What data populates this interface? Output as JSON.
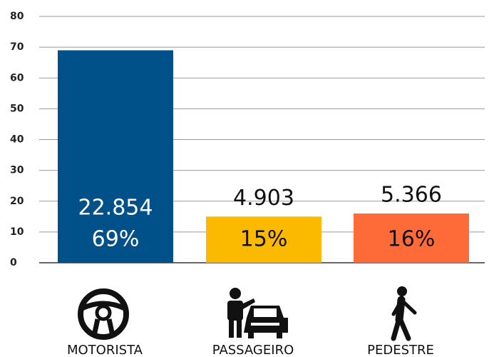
{
  "chart_data": {
    "type": "bar",
    "categories": [
      "MOTORISTA",
      "PASSAGEIRO",
      "PEDESTRE"
    ],
    "values": [
      69,
      15,
      16
    ],
    "value_labels": [
      "69%",
      "15%",
      "16%"
    ],
    "count_labels": [
      "22.854",
      "4.903",
      "5.366"
    ],
    "colors": [
      "#00508a",
      "#fbb900",
      "#ff6a39"
    ],
    "ylim": [
      0,
      80
    ],
    "yticks": [
      0,
      10,
      20,
      30,
      40,
      50,
      60,
      70,
      80
    ],
    "grid": true
  }
}
